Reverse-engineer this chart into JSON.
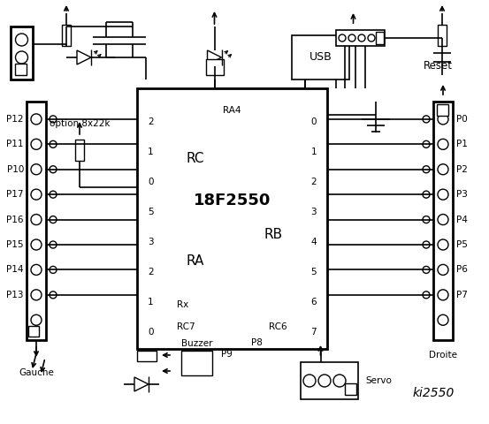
{
  "title": "ki2550",
  "chip_label": "18F2550",
  "chip_sublabel": "RA4",
  "rc_label": "RC",
  "ra_label": "RA",
  "rb_label": "RB",
  "rc_pins": [
    "2",
    "1",
    "0",
    "5",
    "3",
    "2",
    "1",
    "0"
  ],
  "rx_label": "Rx",
  "rc7_label": "RC7",
  "rc6_label": "RC6",
  "rb_pins": [
    "0",
    "1",
    "2",
    "3",
    "4",
    "5",
    "6",
    "7"
  ],
  "left_pins": [
    "P12",
    "P11",
    "P10",
    "P17",
    "P16",
    "P15",
    "P14",
    "P13"
  ],
  "right_pins": [
    "P0",
    "P1",
    "P2",
    "P3",
    "P4",
    "P5",
    "P6",
    "P7"
  ],
  "gauche_label": "Gauche",
  "droite_label": "Droite",
  "option_label": "option 8x22k",
  "usb_label": "USB",
  "reset_label": "Reset",
  "buzzer_label": "Buzzer",
  "p9_label": "P9",
  "p8_label": "P8",
  "servo_label": "Servo",
  "bg_color": "#ffffff",
  "fg_color": "#000000"
}
